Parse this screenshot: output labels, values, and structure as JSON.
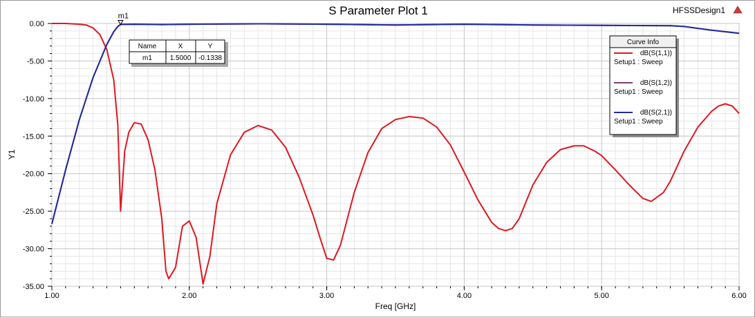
{
  "window": {
    "title": "S Parameter Plot 1",
    "design_name": "HFSSDesign1"
  },
  "marker": {
    "name": "m1",
    "table": {
      "headers": [
        "Name",
        "X",
        "Y"
      ],
      "row": [
        "m1",
        "1.5000",
        "-0.1338"
      ]
    },
    "x": 1.5,
    "y": -0.1338
  },
  "legend": {
    "title": "Curve Info",
    "entries": [
      {
        "name": "dB(S(1,1))",
        "setup": "Setup1 : Sweep",
        "color": "#e0161e"
      },
      {
        "name": "dB(S(1,2))",
        "setup": "Setup1 : Sweep",
        "color": "#7b3b7b"
      },
      {
        "name": "dB(S(2,1))",
        "setup": "Setup1 : Sweep",
        "color": "#1f2aa0"
      }
    ]
  },
  "chart_data": {
    "type": "line",
    "title": "S Parameter Plot 1",
    "xlabel": "Freq [GHz]",
    "ylabel": "Y1",
    "xlim": [
      1.0,
      6.0
    ],
    "ylim": [
      -35.0,
      0.0
    ],
    "xticks": [
      1.0,
      2.0,
      3.0,
      4.0,
      5.0,
      6.0
    ],
    "xtick_labels": [
      "1.00",
      "2.00",
      "3.00",
      "4.00",
      "5.00",
      "6.00"
    ],
    "yticks": [
      0,
      -5,
      -10,
      -15,
      -20,
      -25,
      -30,
      -35
    ],
    "ytick_labels": [
      "0.00",
      "-5.00",
      "-10.00",
      "-15.00",
      "-20.00",
      "-25.00",
      "-30.00",
      "-35.00"
    ],
    "grid": true,
    "legend_position": "top-right",
    "series": [
      {
        "name": "dB(S(1,1))",
        "color": "#e0161e",
        "x": [
          1.0,
          1.1,
          1.2,
          1.25,
          1.3,
          1.35,
          1.4,
          1.45,
          1.48,
          1.5,
          1.53,
          1.56,
          1.6,
          1.65,
          1.7,
          1.75,
          1.8,
          1.83,
          1.85,
          1.9,
          1.95,
          2.0,
          2.05,
          2.1,
          2.15,
          2.2,
          2.3,
          2.4,
          2.5,
          2.6,
          2.7,
          2.8,
          2.9,
          2.95,
          3.0,
          3.05,
          3.1,
          3.2,
          3.3,
          3.4,
          3.5,
          3.6,
          3.7,
          3.8,
          3.9,
          4.0,
          4.1,
          4.2,
          4.25,
          4.3,
          4.35,
          4.4,
          4.5,
          4.6,
          4.7,
          4.8,
          4.87,
          4.95,
          5.0,
          5.1,
          5.2,
          5.3,
          5.36,
          5.45,
          5.5,
          5.6,
          5.7,
          5.8,
          5.85,
          5.9,
          5.95,
          6.0
        ],
        "y": [
          0.0,
          0.0,
          -0.1,
          -0.2,
          -0.6,
          -1.5,
          -3.5,
          -7.5,
          -13.5,
          -25.0,
          -17.0,
          -14.5,
          -13.2,
          -13.4,
          -15.5,
          -19.5,
          -26.0,
          -33.0,
          -34.0,
          -32.5,
          -27.0,
          -26.3,
          -28.5,
          -34.7,
          -31.0,
          -24.0,
          -17.5,
          -14.5,
          -13.6,
          -14.2,
          -16.5,
          -20.5,
          -25.5,
          -28.5,
          -31.3,
          -31.5,
          -29.5,
          -22.5,
          -17.2,
          -14.0,
          -12.8,
          -12.4,
          -12.6,
          -13.8,
          -16.2,
          -19.8,
          -23.5,
          -26.5,
          -27.3,
          -27.6,
          -27.3,
          -26.0,
          -21.5,
          -18.5,
          -16.8,
          -16.3,
          -16.3,
          -17.0,
          -17.6,
          -19.5,
          -21.5,
          -23.3,
          -23.7,
          -22.5,
          -21.0,
          -17.0,
          -13.8,
          -11.7,
          -11.0,
          -10.7,
          -11.0,
          -12.0
        ]
      },
      {
        "name": "dB(S(1,2))",
        "color": "#7b3b7b",
        "x": [
          1.0,
          1.1,
          1.2,
          1.3,
          1.4,
          1.45,
          1.48,
          1.5,
          1.6,
          1.8,
          2.0,
          2.5,
          3.0,
          3.5,
          4.0,
          4.5,
          5.0,
          5.5,
          5.6,
          5.7,
          5.8,
          5.9,
          6.0
        ],
        "y": [
          -26.7,
          -19.5,
          -12.8,
          -7.2,
          -2.8,
          -1.1,
          -0.4,
          -0.13,
          -0.1,
          -0.15,
          -0.1,
          -0.05,
          -0.1,
          -0.2,
          -0.1,
          -0.2,
          -0.25,
          -0.3,
          -0.4,
          -0.65,
          -0.9,
          -1.1,
          -1.3
        ]
      },
      {
        "name": "dB(S(2,1))",
        "color": "#1f2aa0",
        "x": [
          1.0,
          1.1,
          1.2,
          1.3,
          1.4,
          1.45,
          1.48,
          1.5,
          1.6,
          1.8,
          2.0,
          2.5,
          3.0,
          3.5,
          4.0,
          4.5,
          5.0,
          5.5,
          5.6,
          5.7,
          5.8,
          5.9,
          6.0
        ],
        "y": [
          -26.7,
          -19.5,
          -12.8,
          -7.2,
          -2.8,
          -1.1,
          -0.4,
          -0.13,
          -0.1,
          -0.15,
          -0.1,
          -0.05,
          -0.1,
          -0.2,
          -0.1,
          -0.2,
          -0.25,
          -0.3,
          -0.4,
          -0.65,
          -0.9,
          -1.1,
          -1.3
        ]
      }
    ]
  }
}
